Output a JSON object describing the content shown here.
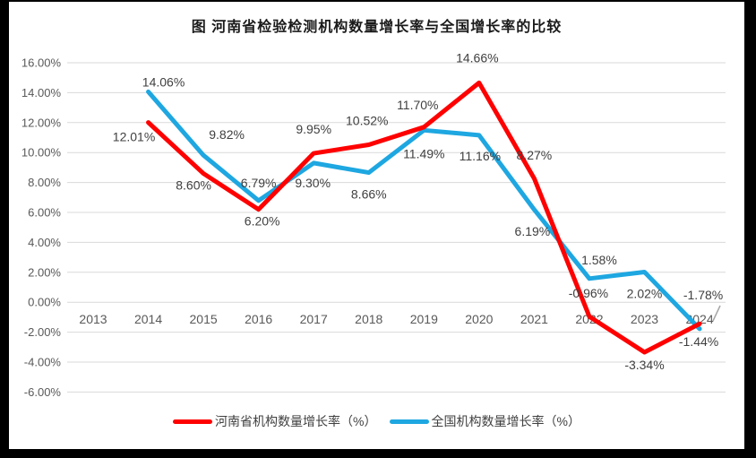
{
  "frame": {
    "background": "#000000",
    "canvas_background": "#FFFFFF"
  },
  "chart_data": {
    "type": "line",
    "title": "图  河南省检验检测机构数量增长率与全国增长率的比较",
    "categories": [
      "2013",
      "2014",
      "2015",
      "2016",
      "2017",
      "2018",
      "2019",
      "2020",
      "2021",
      "2022",
      "2023",
      "2024"
    ],
    "series": [
      {
        "name": "河南省机构数量增长率（%）",
        "color": "#FF0000",
        "values": [
          null,
          12.01,
          8.6,
          6.2,
          9.95,
          10.52,
          11.7,
          14.66,
          8.27,
          -0.96,
          -3.34,
          -1.44
        ],
        "labels": [
          null,
          "12.01%",
          "8.60%",
          "6.20%",
          "9.95%",
          "10.52%",
          "11.70%",
          "14.66%",
          "8.27%",
          "-0.96%",
          "-3.34%",
          "-1.44%"
        ],
        "label_offsets": [
          null,
          [
            -16,
            16
          ],
          [
            -11,
            13
          ],
          [
            4,
            13
          ],
          [
            0,
            -27
          ],
          [
            -2,
            -27
          ],
          [
            -7,
            -25
          ],
          [
            -2,
            -28
          ],
          [
            0,
            -26
          ],
          [
            -1,
            -26
          ],
          [
            0,
            14
          ],
          [
            -1,
            20
          ]
        ]
      },
      {
        "name": "全国机构数量增长率（%）",
        "color": "#1EA7E1",
        "values": [
          null,
          14.06,
          9.82,
          6.79,
          9.3,
          8.66,
          11.49,
          11.16,
          6.19,
          1.58,
          2.02,
          -1.78
        ],
        "labels": [
          null,
          "14.06%",
          "9.82%",
          "6.79%",
          "9.30%",
          "8.66%",
          "11.49%",
          "11.16%",
          "6.19%",
          "1.58%",
          "2.02%",
          "-1.78%"
        ],
        "label_offsets": [
          null,
          [
            17,
            -11
          ],
          [
            26,
            -23
          ],
          [
            0,
            -20
          ],
          [
            -1,
            22
          ],
          [
            0,
            24
          ],
          [
            0,
            26
          ],
          [
            1,
            23
          ],
          [
            -2,
            24
          ],
          [
            11,
            -21
          ],
          [
            0,
            24
          ],
          [
            4,
            -38
          ]
        ]
      }
    ],
    "y_axis": {
      "tick_labels": [
        "16.00%",
        "14.00%",
        "12.00%",
        "10.00%",
        "8.00%",
        "6.00%",
        "4.00%",
        "2.00%",
        "0.00%",
        "-2.00%",
        "-4.00%",
        "-6.00%"
      ],
      "tick_values": [
        16,
        14,
        12,
        10,
        8,
        6,
        4,
        2,
        0,
        -2,
        -4,
        -6
      ],
      "ylim": [
        -6,
        16
      ],
      "step": 2
    },
    "grid": true,
    "legend_position": "bottom",
    "label_leader_line": {
      "series": 1,
      "index": 11
    },
    "colors": {
      "gridline": "#D9D9D9",
      "axis_text": "#595959",
      "data_label_text": "#3F3F3F",
      "leader_line": "#A6A6A6"
    }
  }
}
